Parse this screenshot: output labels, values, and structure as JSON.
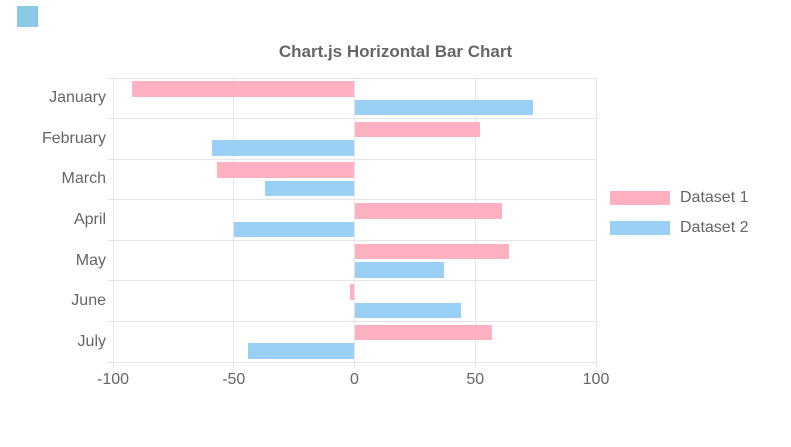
{
  "chart_data": {
    "type": "bar",
    "orientation": "horizontal",
    "title": "Chart.js Horizontal Bar Chart",
    "categories": [
      "January",
      "February",
      "March",
      "April",
      "May",
      "June",
      "July"
    ],
    "series": [
      {
        "name": "Dataset 1",
        "color": "#ffb1c1",
        "values": [
          -92,
          52,
          -57,
          61,
          64,
          -2,
          57
        ]
      },
      {
        "name": "Dataset 2",
        "color": "#9ad0f5",
        "values": [
          74,
          -59,
          -37,
          -50,
          37,
          44,
          -44
        ]
      }
    ],
    "x_ticks": [
      -100,
      -50,
      0,
      50,
      100
    ],
    "xlim": [
      -100,
      100
    ],
    "grid": true,
    "legend_position": "right",
    "colors": {
      "text": "#666666",
      "grid": "#e5e5e5",
      "background": "#ffffff",
      "corner_square": "#8bc9e4"
    }
  }
}
